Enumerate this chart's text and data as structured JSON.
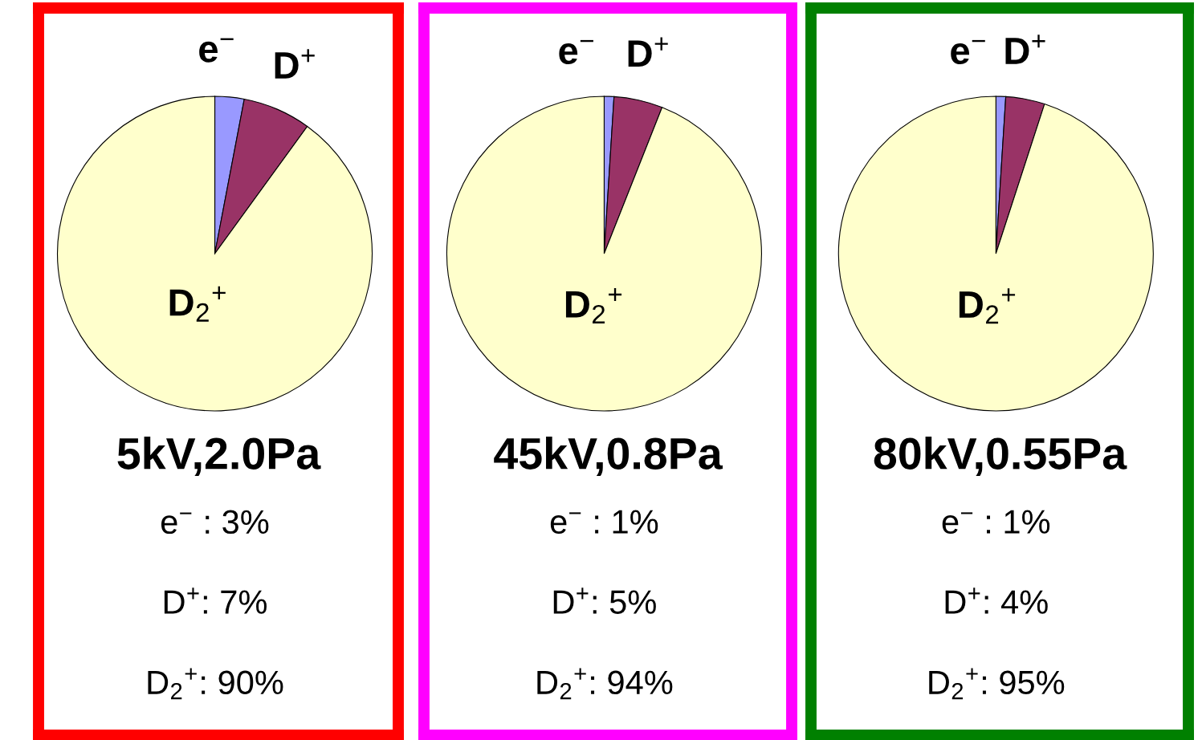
{
  "chart_data": [
    {
      "type": "pie",
      "title": "5kV,2.0Pa",
      "categories": [
        "e$^{−}$",
        "D$^{+}$",
        "D$_{2}$$^{+}$"
      ],
      "values": [
        3,
        7,
        90
      ],
      "colors": [
        "#9999ff",
        "#993366",
        "#ffffcc"
      ],
      "annotations": [
        "e$^{−}$ : 3%",
        "D$^{+}$: 7%",
        "D$_{2}$$^{+}$: 90%"
      ]
    },
    {
      "type": "pie",
      "title": "45kV,0.8Pa",
      "categories": [
        "e$^{−}$",
        "D$^{+}$",
        "D$_{2}$$^{+}$"
      ],
      "values": [
        1,
        5,
        94
      ],
      "colors": [
        "#9999ff",
        "#993366",
        "#ffffcc"
      ],
      "annotations": [
        "e$^{−}$ : 1%",
        "D$^{+}$: 5%",
        "D$_{2}$$^{+}$: 94%"
      ]
    },
    {
      "type": "pie",
      "title": "80kV,0.55Pa",
      "categories": [
        "e$^{−}$",
        "D$^{+}$",
        "D$_{2}$$^{+}$"
      ],
      "values": [
        1,
        4,
        95
      ],
      "colors": [
        "#9999ff",
        "#993366",
        "#ffffcc"
      ],
      "annotations": [
        "e$^{−}$ : 1%",
        "D$^{+}$: 4%",
        "D$_{2}$$^{+}$: 95%"
      ]
    }
  ]
}
